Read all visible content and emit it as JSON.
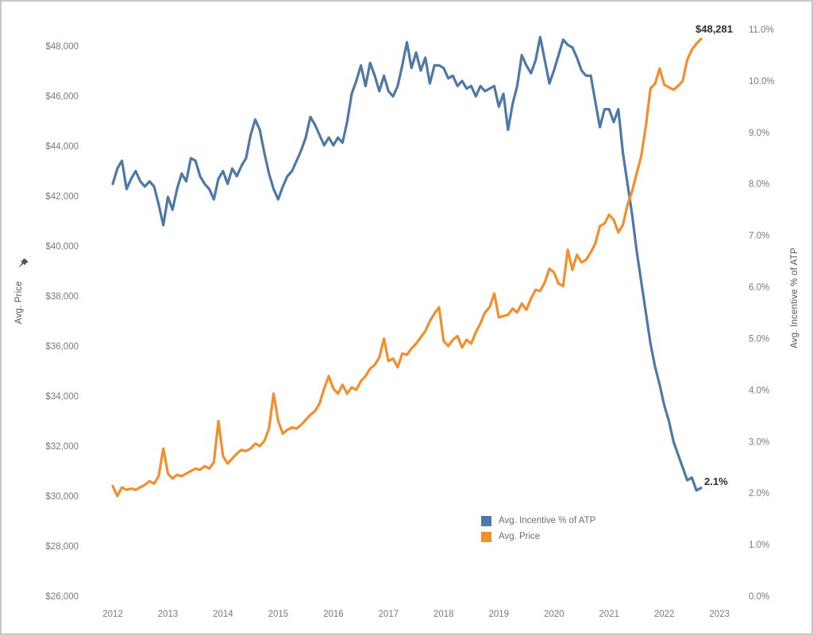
{
  "chart_data": {
    "type": "line",
    "title": "",
    "x_axis": {
      "unit": "month",
      "start": "2012-01",
      "end": "2022-09",
      "tick_labels": [
        "2012",
        "2013",
        "2014",
        "2015",
        "2016",
        "2017",
        "2018",
        "2019",
        "2020",
        "2021",
        "2022",
        "2023"
      ]
    },
    "left_axis": {
      "label": "Avg. Price",
      "pinned": true,
      "min": 26000,
      "max": 48000,
      "tick_step": 2000,
      "tick_labels": [
        "$26,000",
        "$28,000",
        "$30,000",
        "$32,000",
        "$34,000",
        "$36,000",
        "$38,000",
        "$40,000",
        "$42,000",
        "$44,000",
        "$46,000",
        "$48,000"
      ]
    },
    "right_axis": {
      "label": "Avg. Incentive % of ATP",
      "min": 0,
      "max": 11,
      "tick_step": 1,
      "tick_labels": [
        "0.0%",
        "1.0%",
        "2.0%",
        "3.0%",
        "4.0%",
        "5.0%",
        "6.0%",
        "7.0%",
        "8.0%",
        "9.0%",
        "10.0%",
        "11.0%"
      ]
    },
    "grid": "off",
    "legend_position": "bottom-right-inside",
    "series": [
      {
        "name": "Avg. Incentive % of ATP",
        "axis": "right",
        "color": "#4E79A7",
        "values": [
          8.0,
          8.3,
          8.45,
          7.9,
          8.1,
          8.25,
          8.05,
          7.95,
          8.05,
          7.95,
          7.6,
          7.2,
          7.75,
          7.5,
          7.9,
          8.2,
          8.05,
          8.5,
          8.45,
          8.15,
          8.0,
          7.9,
          7.7,
          8.1,
          8.25,
          8.0,
          8.3,
          8.15,
          8.35,
          8.5,
          8.95,
          9.25,
          9.05,
          8.6,
          8.2,
          7.9,
          7.7,
          7.95,
          8.15,
          8.25,
          8.45,
          8.65,
          8.9,
          9.3,
          9.15,
          8.95,
          8.75,
          8.9,
          8.75,
          8.9,
          8.8,
          9.2,
          9.75,
          10.0,
          10.3,
          9.9,
          10.35,
          10.1,
          9.8,
          10.1,
          9.8,
          9.7,
          9.9,
          10.3,
          10.75,
          10.25,
          10.55,
          10.2,
          10.45,
          9.95,
          10.3,
          10.3,
          10.25,
          10.05,
          10.1,
          9.9,
          10.0,
          9.85,
          9.9,
          9.7,
          9.9,
          9.8,
          9.85,
          9.9,
          9.5,
          9.75,
          9.05,
          9.55,
          9.9,
          10.5,
          10.3,
          10.15,
          10.4,
          10.85,
          10.4,
          9.95,
          10.2,
          10.5,
          10.8,
          10.7,
          10.65,
          10.45,
          10.2,
          10.1,
          10.1,
          9.6,
          9.1,
          9.45,
          9.45,
          9.2,
          9.45,
          8.6,
          8.0,
          7.4,
          6.7,
          6.1,
          5.5,
          4.9,
          4.45,
          4.1,
          3.7,
          3.4,
          3.0,
          2.75,
          2.5,
          2.25,
          2.3,
          2.05,
          2.1
        ]
      },
      {
        "name": "Avg. Price",
        "axis": "left",
        "color": "#F28E2B",
        "values": [
          30400,
          30000,
          30350,
          30250,
          30300,
          30250,
          30350,
          30450,
          30600,
          30500,
          30800,
          31900,
          30900,
          30700,
          30850,
          30800,
          30900,
          31000,
          31100,
          31050,
          31200,
          31100,
          31350,
          33000,
          31600,
          31300,
          31500,
          31700,
          31850,
          31800,
          31900,
          32100,
          32000,
          32200,
          32700,
          34100,
          33000,
          32500,
          32650,
          32750,
          32700,
          32850,
          33050,
          33250,
          33400,
          33700,
          34300,
          34800,
          34300,
          34100,
          34450,
          34100,
          34350,
          34250,
          34600,
          34800,
          35100,
          35250,
          35550,
          36300,
          35400,
          35500,
          35150,
          35700,
          35650,
          35900,
          36100,
          36350,
          36600,
          37000,
          37300,
          37550,
          36200,
          36000,
          36250,
          36400,
          35950,
          36250,
          36100,
          36550,
          36900,
          37350,
          37550,
          38100,
          37150,
          37200,
          37250,
          37500,
          37350,
          37700,
          37450,
          37900,
          38250,
          38200,
          38550,
          39100,
          38950,
          38500,
          38400,
          39850,
          39050,
          39650,
          39350,
          39450,
          39750,
          40100,
          40800,
          40900,
          41250,
          41050,
          40550,
          40850,
          41650,
          42200,
          42900,
          43600,
          44800,
          46300,
          46500,
          47100,
          46450,
          46350,
          46250,
          46400,
          46600,
          47450,
          47850,
          48100,
          48281
        ]
      }
    ],
    "annotations": [
      {
        "text": "$48,281",
        "series": "Avg. Price",
        "position": "end-of-line-top-right"
      },
      {
        "text": "2.1%",
        "series": "Avg. Incentive % of ATP",
        "position": "end-of-line-right"
      }
    ]
  },
  "legend": {
    "items": [
      {
        "label": "Avg. Incentive % of ATP",
        "color": "#4E79A7"
      },
      {
        "label": "Avg. Price",
        "color": "#F28E2B"
      }
    ]
  }
}
